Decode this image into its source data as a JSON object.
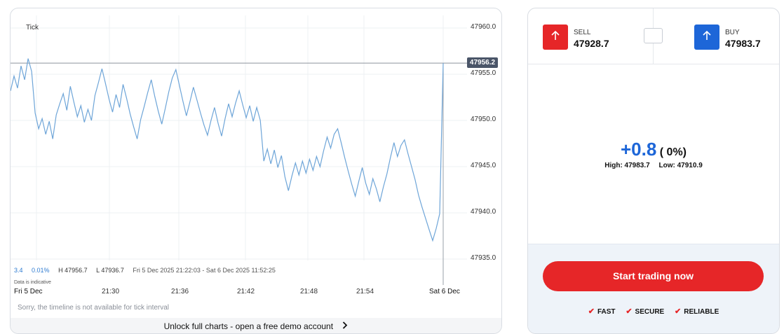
{
  "chart": {
    "interval": "Tick",
    "y_ticks": [
      "47960.0",
      "47955.0",
      "47950.0",
      "47945.0",
      "47940.0",
      "47935.0"
    ],
    "current_price": "47956.2",
    "stats": {
      "change": "3.4",
      "change_pct": "0.01%",
      "high": "H 47956.7",
      "low": "L 47936.7",
      "range": "Fri 5 Dec 2025 21:22:03 - Sat 6 Dec 2025 11:52:25"
    },
    "data_note": "Data is indicative",
    "x_ticks": [
      "Fri 5 Dec",
      "21:30",
      "21:36",
      "21:42",
      "21:48",
      "21:54",
      "Sat 6 Dec"
    ],
    "timeline_note": "Sorry, the timeline is not available for tick interval",
    "unlock_label": "Unlock full charts - open a free demo account"
  },
  "chart_data": {
    "type": "line",
    "ylim": [
      47935,
      47961.5
    ],
    "series": [
      {
        "values": [
          47953.2,
          47954.8,
          47953.5,
          47955.9,
          47954.4,
          47956.7,
          47955.3,
          47950.8,
          47949.1,
          47950.2,
          47948.5,
          47949.9,
          47948.0,
          47950.6,
          47951.8,
          47952.9,
          47951.1,
          47953.7,
          47952.0,
          47950.4,
          47951.6,
          47949.8,
          47951.2,
          47950.0,
          47952.7,
          47954.1,
          47955.6,
          47954.0,
          47952.3,
          47950.9,
          47952.8,
          47951.4,
          47953.9,
          47952.4,
          47950.7,
          47949.3,
          47948.0,
          47950.1,
          47951.5,
          47953.0,
          47954.4,
          47952.6,
          47951.0,
          47949.6,
          47951.3,
          47953.1,
          47954.6,
          47955.5,
          47953.8,
          47952.1,
          47950.5,
          47952.0,
          47953.6,
          47952.2,
          47950.8,
          47949.5,
          47948.4,
          47950.0,
          47951.4,
          47949.7,
          47948.3,
          47950.2,
          47951.8,
          47950.4,
          47951.9,
          47953.2,
          47951.7,
          47950.3,
          47951.6,
          47949.9,
          47951.4,
          47950.0,
          47945.6,
          47946.9,
          47945.3,
          47946.8,
          47944.9,
          47946.2,
          47943.9,
          47942.4,
          47944.0,
          47945.4,
          47944.1,
          47945.6,
          47944.3,
          47945.8,
          47944.6,
          47946.1,
          47945.0,
          47946.7,
          47948.2,
          47947.0,
          47948.5,
          47949.1,
          47947.6,
          47946.0,
          47944.5,
          47943.1,
          47941.8,
          47943.4,
          47944.9,
          47943.2,
          47942.0,
          47943.7,
          47942.6,
          47941.2,
          47942.8,
          47944.2,
          47946.0,
          47947.6,
          47946.1,
          47947.3,
          47947.9,
          47946.4,
          47945.0,
          47943.6,
          47941.9,
          47940.6,
          47939.4,
          47938.2,
          47937.0,
          47938.3,
          47939.9,
          47956.2
        ]
      }
    ]
  },
  "trade": {
    "sell_label": "SELL",
    "sell_price": "47928.7",
    "buy_label": "BUY",
    "buy_price": "47983.7",
    "change": "+0.8",
    "change_pct": "( 0%)",
    "high": "High: 47983.7",
    "low": "Low: 47910.9",
    "start_label": "Start trading now",
    "features": [
      "FAST",
      "SECURE",
      "RELIABLE"
    ]
  },
  "colors": {
    "line": "#6ea5d8",
    "sell": "#e62628",
    "buy": "#1d66d8",
    "change": "#1d66d8"
  },
  "icons": {
    "sell": "arrow-up-icon",
    "buy": "arrow-up-icon",
    "unlock": "chevron-right-icon",
    "feature": "check-icon"
  }
}
